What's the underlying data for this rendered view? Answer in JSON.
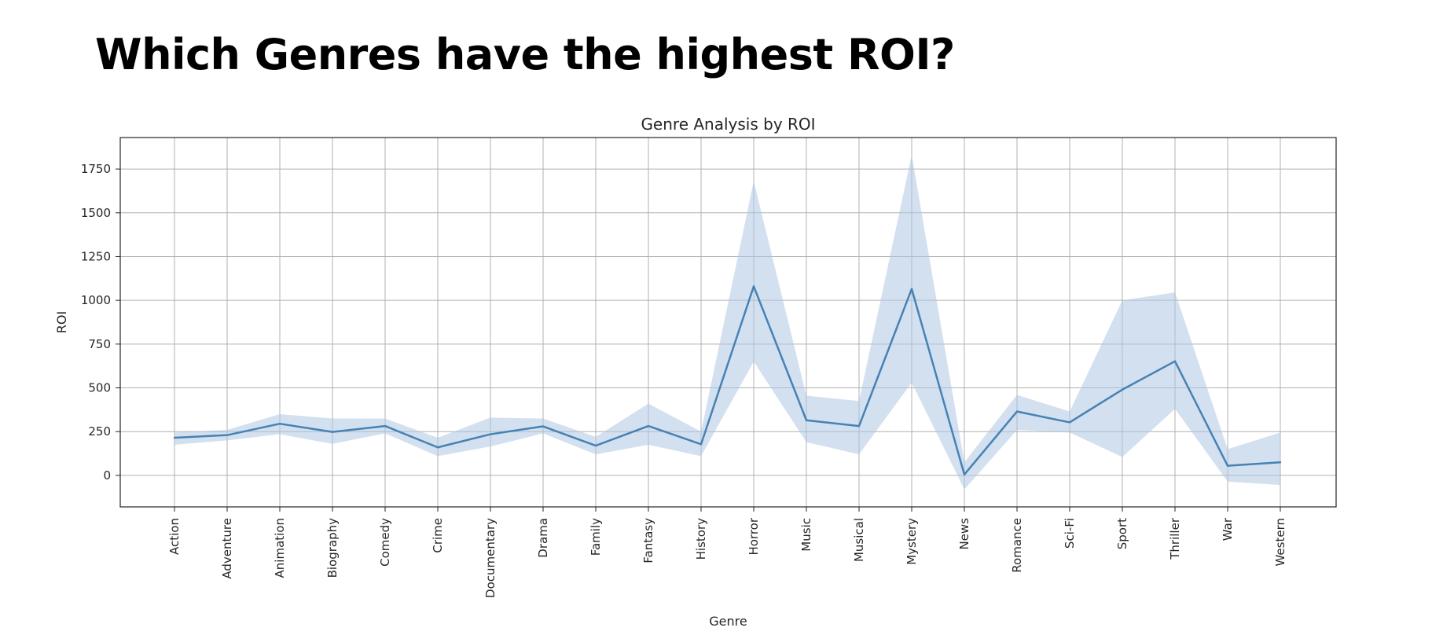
{
  "heading": "Which Genres have the highest ROI?",
  "colors": {
    "line": "#4682b4",
    "band": "#aec7e3",
    "grid": "#b0b0b0",
    "axes": "#262626"
  },
  "chart_data": {
    "type": "line",
    "title": "Genre Analysis by ROI",
    "xlabel": "Genre",
    "ylabel": "ROI",
    "ylim": [
      -180,
      1930
    ],
    "yticks": [
      0,
      250,
      500,
      750,
      1000,
      1250,
      1500,
      1750
    ],
    "grid": true,
    "categories": [
      "Action",
      "Adventure",
      "Animation",
      "Biography",
      "Comedy",
      "Crime",
      "Documentary",
      "Drama",
      "Family",
      "Fantasy",
      "History",
      "Horror",
      "Music",
      "Musical",
      "Mystery",
      "News",
      "Romance",
      "Sci-Fi",
      "Sport",
      "Thriller",
      "War",
      "Western"
    ],
    "series": [
      {
        "values": [
          215,
          230,
          295,
          248,
          282,
          160,
          235,
          280,
          170,
          282,
          178,
          1080,
          315,
          282,
          1065,
          5,
          365,
          303,
          490,
          652,
          55,
          75
        ],
        "ci_low": [
          175,
          200,
          235,
          180,
          240,
          110,
          165,
          240,
          120,
          175,
          110,
          650,
          190,
          120,
          530,
          -80,
          260,
          245,
          105,
          380,
          -35,
          -55
        ],
        "ci_high": [
          245,
          260,
          350,
          325,
          325,
          215,
          330,
          325,
          220,
          410,
          250,
          1680,
          455,
          425,
          1830,
          75,
          460,
          365,
          1000,
          1045,
          150,
          245
        ]
      }
    ]
  }
}
